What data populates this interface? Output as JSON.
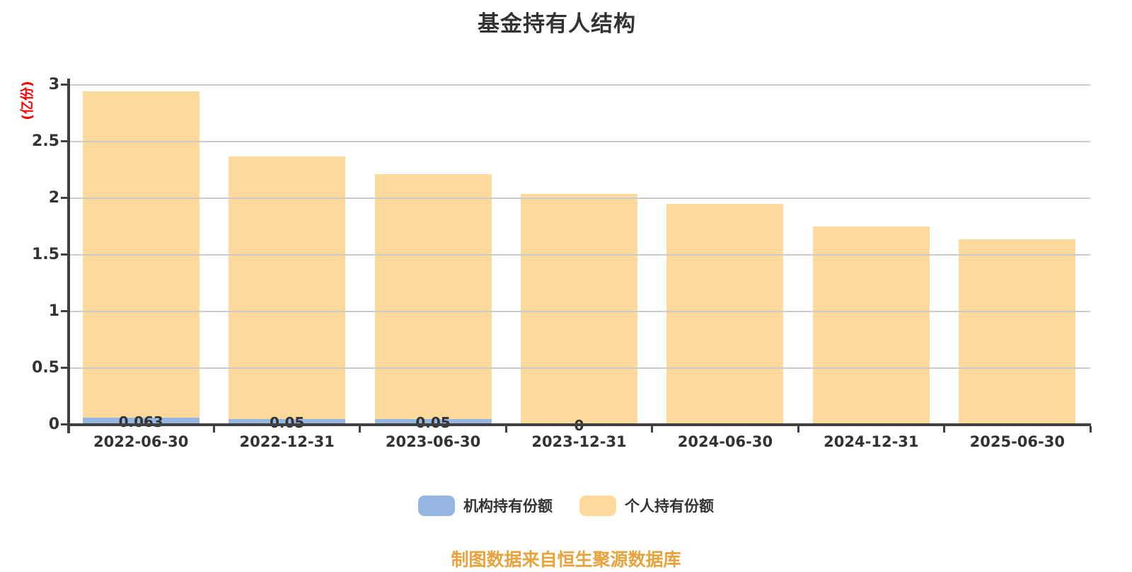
{
  "title": "基金持有人结构",
  "y_axis_unit": "(亿份)",
  "caption": "制图数据来自恒生聚源数据库",
  "colors": {
    "institutional": "#94b6e1",
    "individual": "#fdd99b",
    "axis": "#404040",
    "grid": "#cccccc",
    "text": "#333333",
    "unit_label": "#ff0000",
    "caption": "#e8a33d",
    "background": "#ffffff"
  },
  "legend": [
    {
      "label": "机构持有份额",
      "color": "#94b6e1"
    },
    {
      "label": "个人持有份额",
      "color": "#fdd99b"
    }
  ],
  "chart_data": {
    "type": "bar",
    "stacked": true,
    "title": "基金持有人结构",
    "ylabel": "(亿份)",
    "xlabel": "",
    "categories": [
      "2022-06-30",
      "2022-12-31",
      "2023-06-30",
      "2023-12-31",
      "2024-06-30",
      "2024-12-31",
      "2025-06-30"
    ],
    "series": [
      {
        "name": "机构持有份额",
        "color": "#94b6e1",
        "values": [
          0.063,
          0.05,
          0.05,
          0,
          0,
          0,
          0
        ],
        "labels": [
          "0.063",
          "0.05",
          "0.05",
          "0",
          "",
          "",
          ""
        ]
      },
      {
        "name": "个人持有份额",
        "color": "#fdd99b",
        "values": [
          2.88,
          2.32,
          2.16,
          2.04,
          1.95,
          1.75,
          1.64
        ],
        "labels": [
          "",
          "",
          "",
          "",
          "",
          "",
          ""
        ]
      }
    ],
    "totals": [
      2.943,
      2.37,
      2.21,
      2.04,
      1.95,
      1.75,
      1.64
    ],
    "ylim": [
      0,
      3
    ],
    "yticks": [
      0,
      0.5,
      1,
      1.5,
      2,
      2.5,
      3
    ],
    "grid": true,
    "gridlines_over_bars": true,
    "legend_position": "bottom"
  }
}
